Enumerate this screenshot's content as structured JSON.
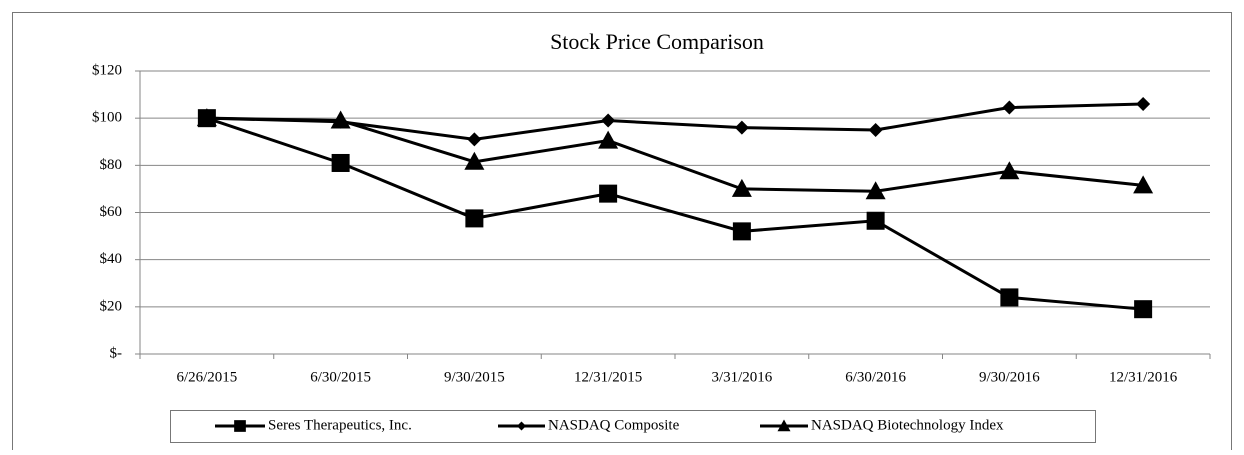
{
  "chart_data": {
    "type": "line",
    "title": "Stock Price  Comparison",
    "categories": [
      "6/26/2015",
      "6/30/2015",
      "9/30/2015",
      "12/31/2015",
      "3/31/2016",
      "6/30/2016",
      "9/30/2016",
      "12/31/2016"
    ],
    "series": [
      {
        "name": "Seres Therapeutics, Inc.",
        "color": "#000000",
        "marker": "square",
        "values": [
          100,
          81,
          57.5,
          68,
          52,
          56.5,
          24,
          19
        ]
      },
      {
        "name": "NASDAQ Composite",
        "color": "#000000",
        "marker": "diamond",
        "values": [
          100,
          98.5,
          91,
          99,
          96,
          95,
          104.5,
          106
        ]
      },
      {
        "name": "NASDAQ Biotechnology Index",
        "color": "#000000",
        "marker": "triangle",
        "values": [
          100,
          99,
          81.5,
          90.5,
          70,
          69,
          77.5,
          71.5
        ]
      }
    ],
    "ylim": [
      0,
      120
    ],
    "yticks": [
      {
        "value": 0,
        "label": "$-"
      },
      {
        "value": 20,
        "label": "$20"
      },
      {
        "value": 40,
        "label": "$40"
      },
      {
        "value": 60,
        "label": "$60"
      },
      {
        "value": 80,
        "label": "$80"
      },
      {
        "value": 100,
        "label": "$100"
      },
      {
        "value": 120,
        "label": "$120"
      }
    ],
    "grid": true,
    "legend": "bottom"
  }
}
